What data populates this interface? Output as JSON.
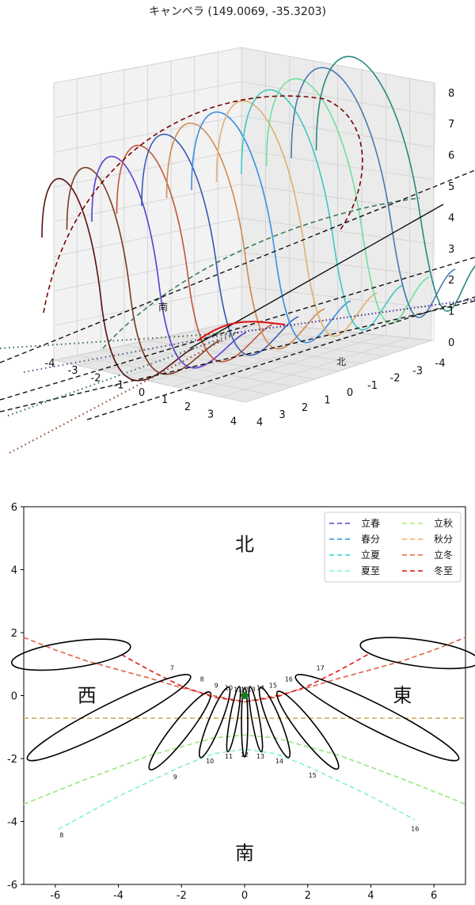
{
  "top_chart": {
    "title": "キャンベラ (149.0069, -35.3203)",
    "type": "3d-line",
    "z_ticks": [
      "0",
      "1",
      "2",
      "3",
      "4",
      "5",
      "6",
      "7",
      "8"
    ],
    "x_ticks": [
      "-4",
      "-3",
      "-2",
      "-1",
      "0",
      "1",
      "2",
      "3",
      "4"
    ],
    "y_ticks": [
      "-4",
      "-3",
      "-2",
      "-1",
      "0",
      "1",
      "2",
      "3",
      "4"
    ],
    "compass": [
      "南",
      "北"
    ]
  },
  "chart_data": {
    "type": "line",
    "title": "",
    "xlim": [
      -7,
      7
    ],
    "ylim": [
      -6,
      6
    ],
    "x_ticks": [
      -6,
      -4,
      -2,
      0,
      2,
      4,
      6
    ],
    "y_ticks": [
      -6,
      -4,
      -2,
      0,
      2,
      4,
      6
    ],
    "compass": {
      "north": "北",
      "south": "南",
      "west": "西",
      "east": "東"
    },
    "legend_position": "top-right",
    "colors": {
      "risshun": "#5b3fd6",
      "shunbun": "#1f8fd6",
      "rikka": "#2ed3d0",
      "geshi": "#7af5b8",
      "risshu": "#a8e87a",
      "shubun": "#f5b15a",
      "ritto": "#f06a3d",
      "toji": "#e01010"
    },
    "series": [
      {
        "name": "立春",
        "color": "#5b3fd6",
        "points": [
          [
            -7,
            1.85
          ],
          [
            -6,
            1.45
          ],
          [
            -5,
            1.1
          ],
          [
            -4,
            0.82
          ],
          [
            -3,
            0.55
          ],
          [
            -2,
            0.25
          ],
          [
            -1,
            0.0
          ],
          [
            0,
            -0.2
          ],
          [
            1,
            0.0
          ],
          [
            2,
            0.25
          ],
          [
            3,
            0.55
          ],
          [
            4,
            0.82
          ],
          [
            5,
            1.1
          ],
          [
            6,
            1.45
          ],
          [
            7,
            1.85
          ]
        ]
      },
      {
        "name": "春分",
        "color": "#1f8fd6",
        "points": [
          [
            -7,
            -0.72
          ],
          [
            0,
            -0.72
          ],
          [
            7,
            -0.72
          ]
        ]
      },
      {
        "name": "立夏",
        "color": "#2ed3d0",
        "points": [
          [
            -7,
            -3.45
          ],
          [
            -5,
            -2.65
          ],
          [
            -3,
            -1.9
          ],
          [
            -1,
            -1.35
          ],
          [
            0,
            -1.25
          ],
          [
            1,
            -1.35
          ],
          [
            3,
            -1.9
          ],
          [
            5,
            -2.65
          ],
          [
            7,
            -3.45
          ]
        ]
      },
      {
        "name": "夏至",
        "color": "#7af5b8",
        "points": [
          [
            -5.9,
            -4.25
          ],
          [
            -4,
            -3.2
          ],
          [
            -2,
            -2.25
          ],
          [
            -1,
            -1.85
          ],
          [
            0,
            -1.7
          ],
          [
            1,
            -1.85
          ],
          [
            2,
            -2.25
          ],
          [
            4,
            -3.2
          ],
          [
            5.4,
            -3.95
          ]
        ]
      },
      {
        "name": "立秋",
        "color": "#a8e87a",
        "points": [
          [
            -7,
            -3.45
          ],
          [
            -5,
            -2.65
          ],
          [
            -3,
            -1.9
          ],
          [
            -1,
            -1.35
          ],
          [
            0,
            -1.25
          ],
          [
            1,
            -1.35
          ],
          [
            3,
            -1.9
          ],
          [
            5,
            -2.65
          ],
          [
            7,
            -3.45
          ]
        ]
      },
      {
        "name": "秋分",
        "color": "#f5b15a",
        "points": [
          [
            -7,
            -0.72
          ],
          [
            0,
            -0.72
          ],
          [
            7,
            -0.72
          ]
        ]
      },
      {
        "name": "立冬",
        "color": "#f06a3d",
        "points": [
          [
            -7,
            1.85
          ],
          [
            -6,
            1.45
          ],
          [
            -5,
            1.1
          ],
          [
            -4,
            0.82
          ],
          [
            -3,
            0.55
          ],
          [
            -2,
            0.25
          ],
          [
            -1,
            0.0
          ],
          [
            0,
            -0.2
          ],
          [
            1,
            0.0
          ],
          [
            2,
            0.25
          ],
          [
            3,
            0.55
          ],
          [
            4,
            0.82
          ],
          [
            5,
            1.1
          ],
          [
            6,
            1.45
          ],
          [
            7,
            1.85
          ]
        ]
      },
      {
        "name": "冬至",
        "color": "#e01010",
        "points": [
          [
            -3.9,
            1.3
          ],
          [
            -3,
            0.8
          ],
          [
            -2,
            0.3
          ],
          [
            -1,
            -0.05
          ],
          [
            0,
            -0.2
          ],
          [
            1,
            -0.05
          ],
          [
            2,
            0.3
          ],
          [
            3,
            0.8
          ],
          [
            3.9,
            1.3
          ]
        ]
      }
    ],
    "hour_labels": [
      {
        "text": "7",
        "x": -2.3,
        "y": 0.8
      },
      {
        "text": "8",
        "x": -1.35,
        "y": 0.45
      },
      {
        "text": "9",
        "x": -0.9,
        "y": 0.25
      },
      {
        "text": "10",
        "x": -0.5,
        "y": 0.18
      },
      {
        "text": "11",
        "x": -0.22,
        "y": 0.12
      },
      {
        "text": "12",
        "x": 0.0,
        "y": 0.12
      },
      {
        "text": "13",
        "x": 0.22,
        "y": 0.12
      },
      {
        "text": "14",
        "x": 0.5,
        "y": 0.18
      },
      {
        "text": "15",
        "x": 0.9,
        "y": 0.25
      },
      {
        "text": "16",
        "x": 1.4,
        "y": 0.45
      },
      {
        "text": "17",
        "x": 2.4,
        "y": 0.8
      },
      {
        "text": "8",
        "x": -5.8,
        "y": -4.5
      },
      {
        "text": "9",
        "x": -2.2,
        "y": -2.65
      },
      {
        "text": "10",
        "x": -1.1,
        "y": -2.15
      },
      {
        "text": "11",
        "x": -0.5,
        "y": -2.0
      },
      {
        "text": "12",
        "x": 0.0,
        "y": -1.95
      },
      {
        "text": "13",
        "x": 0.5,
        "y": -2.0
      },
      {
        "text": "14",
        "x": 1.1,
        "y": -2.15
      },
      {
        "text": "15",
        "x": 2.15,
        "y": -2.6
      },
      {
        "text": "16",
        "x": 5.4,
        "y": -4.3
      }
    ],
    "analemmas": [
      {
        "hour": 7,
        "cx": -5.5,
        "cy": 1.3,
        "rx": 1.9,
        "ry": 0.42,
        "rot": -8
      },
      {
        "hour": 8,
        "cx": -4.3,
        "cy": -0.7,
        "rx": 2.9,
        "ry": 0.4,
        "rot": -27
      },
      {
        "hour": 9,
        "cx": -2.05,
        "cy": -1.12,
        "rx": 1.55,
        "ry": 0.28,
        "rot": -52
      },
      {
        "hour": 10,
        "cx": -0.95,
        "cy": -0.85,
        "rx": 1.2,
        "ry": 0.2,
        "rot": -68
      },
      {
        "hour": 11,
        "cx": -0.35,
        "cy": -0.75,
        "rx": 1.05,
        "ry": 0.12,
        "rot": -80
      },
      {
        "hour": 12,
        "cx": 0.0,
        "cy": -0.85,
        "rx": 1.1,
        "ry": 0.1,
        "rot": -90
      },
      {
        "hour": 13,
        "cx": 0.35,
        "cy": -0.75,
        "rx": 1.05,
        "ry": 0.12,
        "rot": 80
      },
      {
        "hour": 14,
        "cx": 0.95,
        "cy": -0.85,
        "rx": 1.2,
        "ry": 0.2,
        "rot": 68
      },
      {
        "hour": 15,
        "cx": 2.0,
        "cy": -1.1,
        "rx": 1.55,
        "ry": 0.28,
        "rot": 52
      },
      {
        "hour": 16,
        "cx": 4.2,
        "cy": -0.7,
        "rx": 2.9,
        "ry": 0.4,
        "rot": 27
      },
      {
        "hour": 17,
        "cx": 5.55,
        "cy": 1.35,
        "rx": 1.9,
        "ry": 0.42,
        "rot": 8
      }
    ],
    "observer": {
      "x": 0,
      "y": 0,
      "color": "#1a7a1a"
    }
  }
}
